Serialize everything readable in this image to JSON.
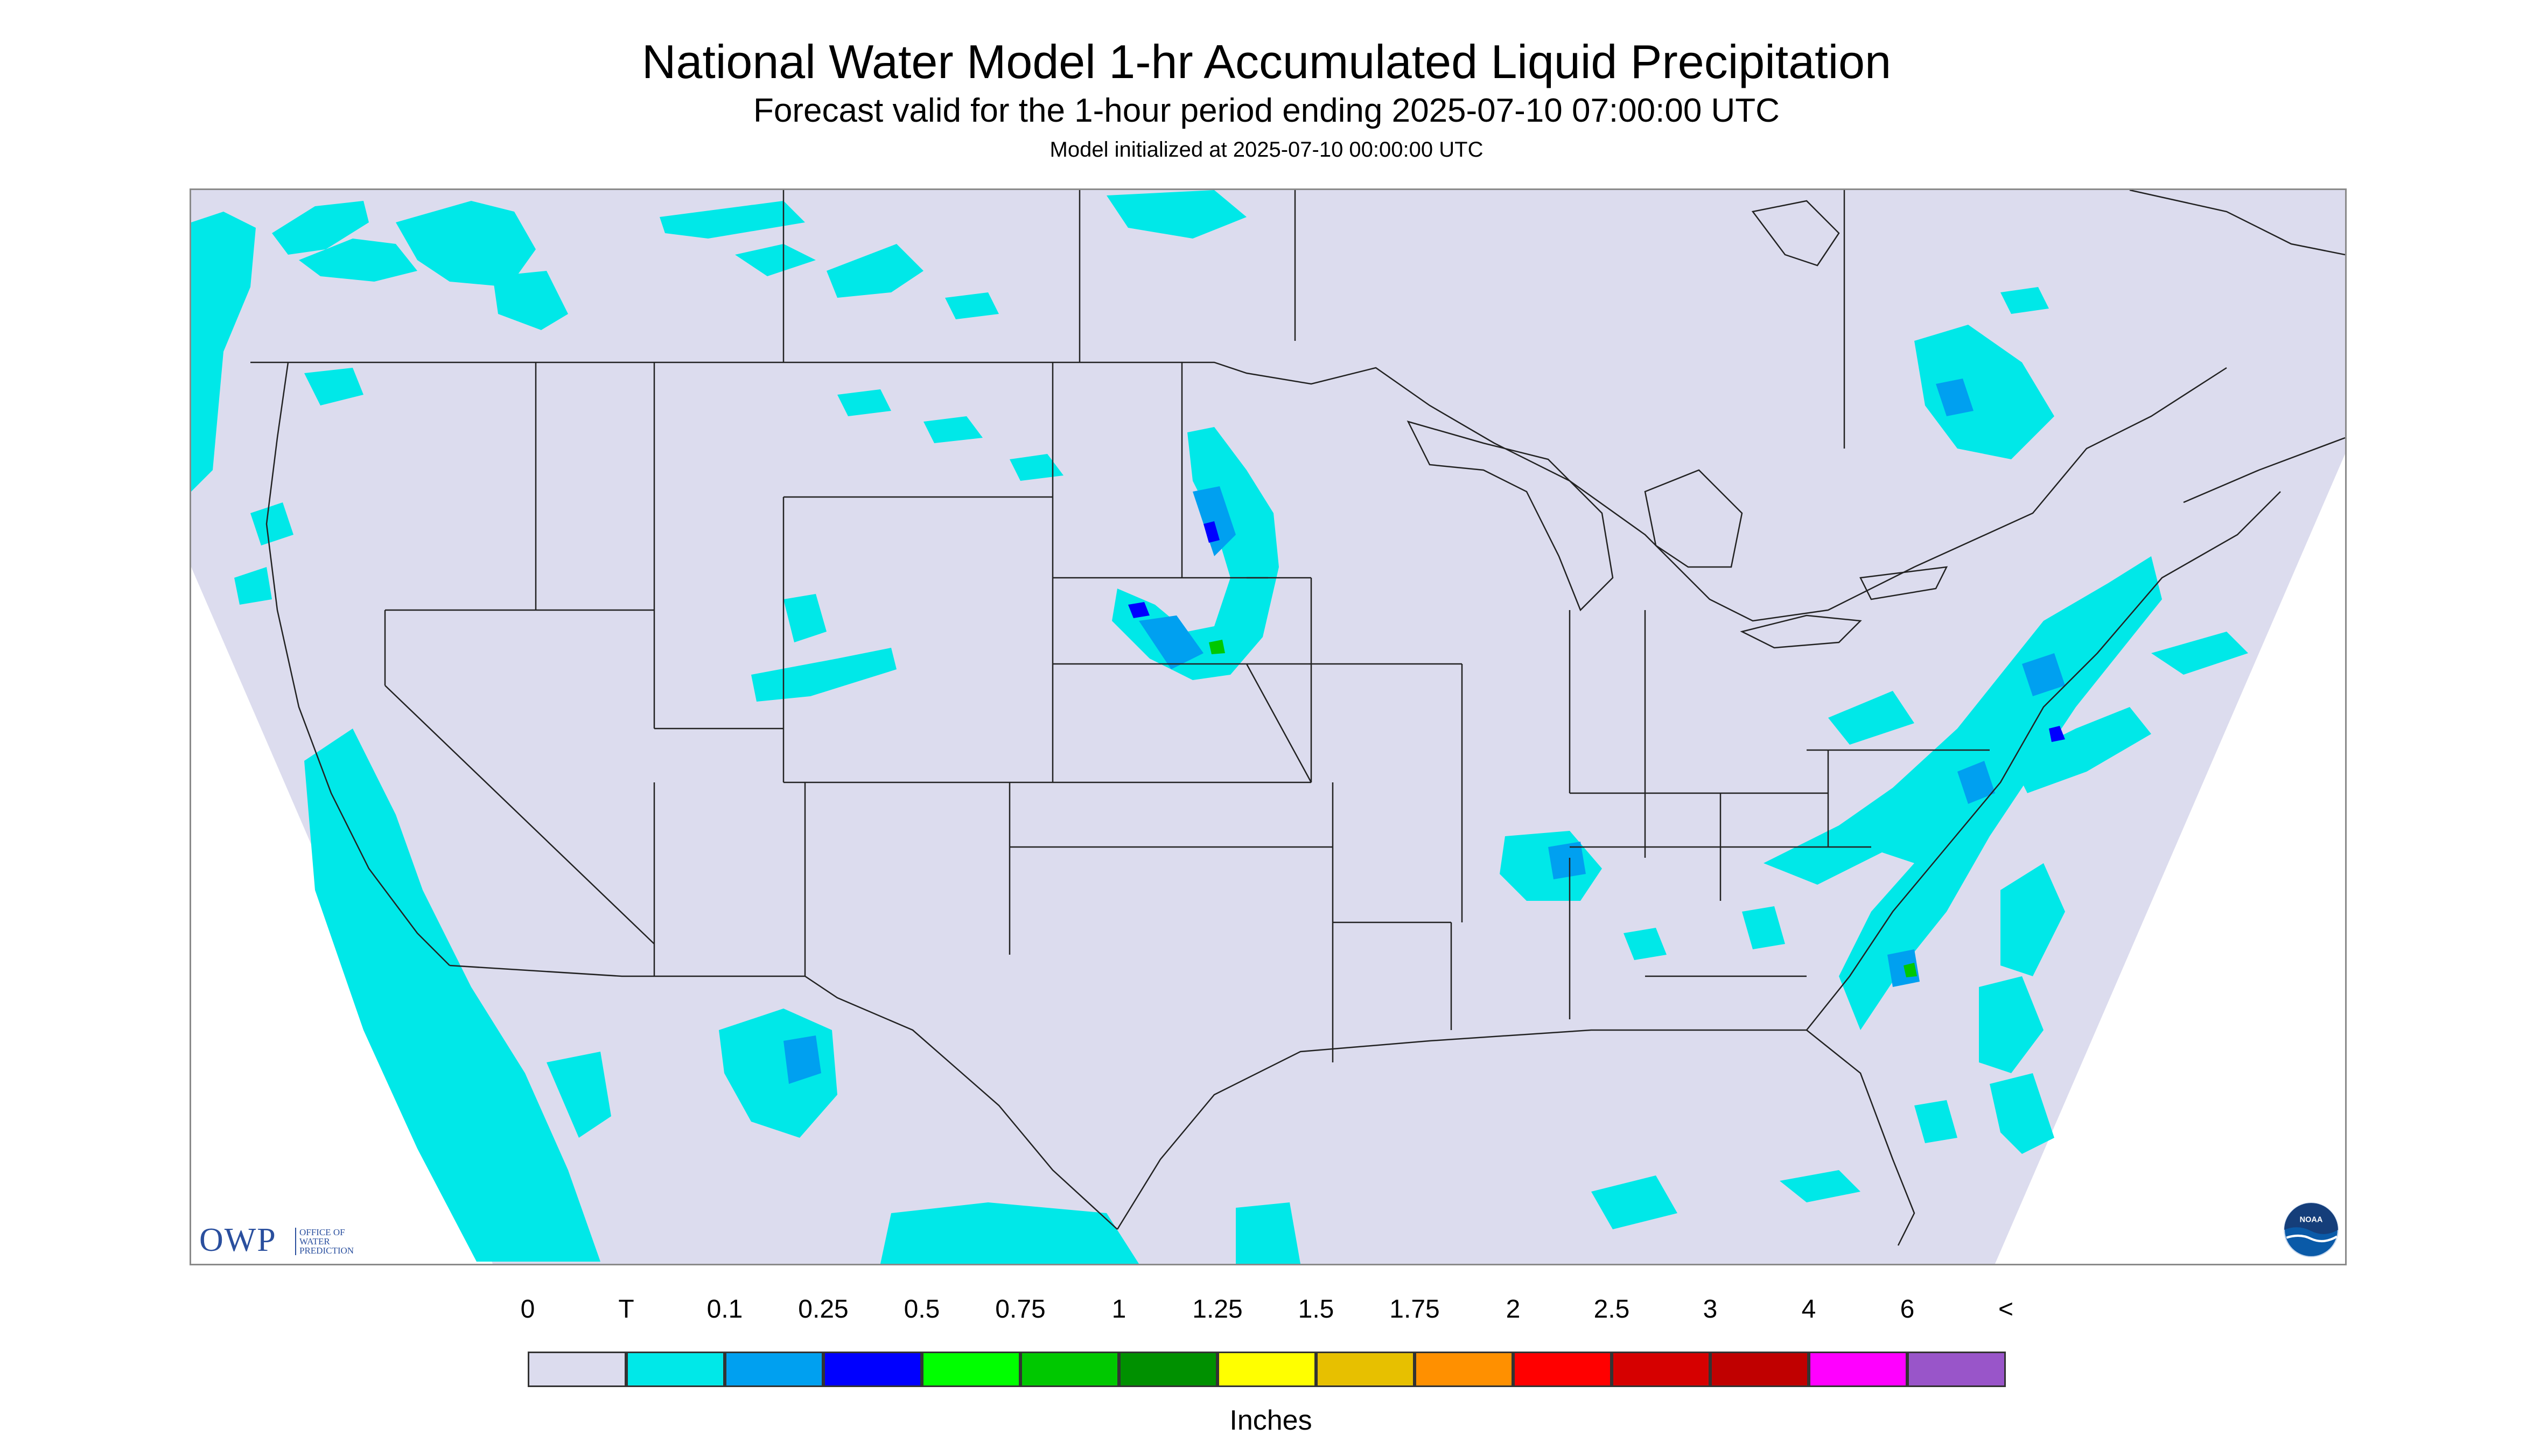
{
  "header": {
    "title": "National Water Model 1-hr Accumulated Liquid Precipitation",
    "subtitle": "Forecast valid for the 1-hour period ending 2025-07-10 07:00:00 UTC",
    "init": "Model initialized at 2025-07-10 00:00:00 UTC"
  },
  "logos": {
    "owp_mark": "OWP",
    "owp_lines": [
      "OFFICE OF",
      "WATER",
      "PREDICTION"
    ],
    "noaa_mark": "NOAA"
  },
  "legend": {
    "labels": [
      "0",
      "T",
      "0.1",
      "0.25",
      "0.5",
      "0.75",
      "1",
      "1.25",
      "1.5",
      "1.75",
      "2",
      "2.5",
      "3",
      "4",
      "6",
      "<"
    ],
    "colors": [
      "#dcdcee",
      "#00e8e8",
      "#00a0f0",
      "#0000ff",
      "#00ff00",
      "#00c800",
      "#009000",
      "#ffff00",
      "#e7c000",
      "#ff9000",
      "#ff0000",
      "#d60000",
      "#c00000",
      "#ff00ff",
      "#9955c9"
    ],
    "units": "Inches"
  },
  "map": {
    "background_color": "#dcdcee",
    "boundary_color": "#222222",
    "rain_colors": {
      "trace": "#00e8e8",
      "light": "#00a0f0",
      "moderate": "#0000ff",
      "heavy": "#00c800"
    }
  }
}
